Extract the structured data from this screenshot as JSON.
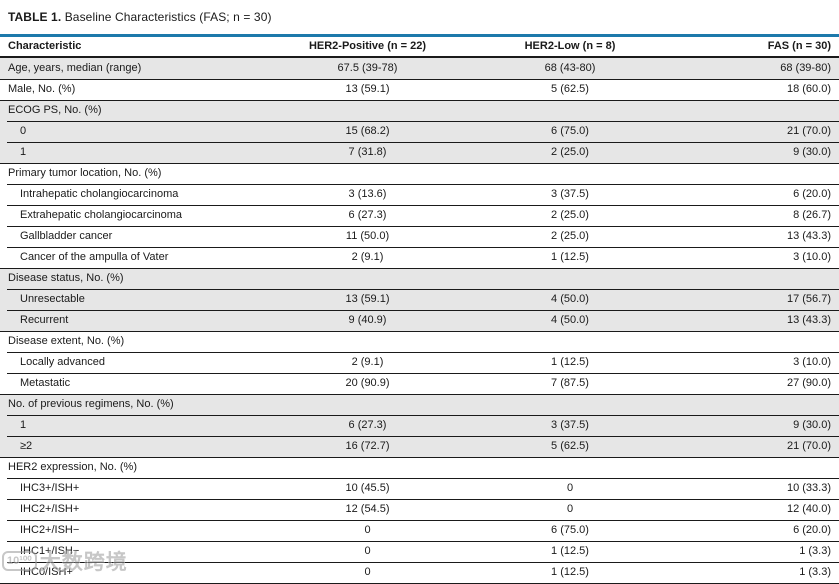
{
  "caption": {
    "label": "TABLE 1.",
    "title": "Baseline Characteristics (FAS; n = 30)"
  },
  "columns": [
    "Characteristic",
    "HER2-Positive (n = 22)",
    "HER2-Low (n = 8)",
    "FAS (n = 30)"
  ],
  "rows": [
    {
      "label": "Age, years, median (range)",
      "indent": 0,
      "shaded": true,
      "section_start": true,
      "values": [
        "67.5 (39-78)",
        "68 (43-80)",
        "68 (39-80)"
      ]
    },
    {
      "label": "Male, No. (%)",
      "indent": 0,
      "shaded": false,
      "section_start": true,
      "values": [
        "13 (59.1)",
        "5 (62.5)",
        "18 (60.0)"
      ]
    },
    {
      "label": "ECOG PS, No. (%)",
      "indent": 0,
      "shaded": true,
      "section_start": true,
      "values": [
        "",
        "",
        ""
      ]
    },
    {
      "label": "0",
      "indent": 1,
      "shaded": true,
      "section_start": false,
      "values": [
        "15 (68.2)",
        "6 (75.0)",
        "21 (70.0)"
      ]
    },
    {
      "label": "1",
      "indent": 1,
      "shaded": true,
      "section_start": false,
      "values": [
        "7 (31.8)",
        "2 (25.0)",
        "9 (30.0)"
      ]
    },
    {
      "label": "Primary tumor location, No. (%)",
      "indent": 0,
      "shaded": false,
      "section_start": true,
      "values": [
        "",
        "",
        ""
      ]
    },
    {
      "label": "Intrahepatic cholangiocarcinoma",
      "indent": 1,
      "shaded": false,
      "section_start": false,
      "values": [
        "3 (13.6)",
        "3 (37.5)",
        "6 (20.0)"
      ]
    },
    {
      "label": "Extrahepatic cholangiocarcinoma",
      "indent": 1,
      "shaded": false,
      "section_start": false,
      "values": [
        "6 (27.3)",
        "2 (25.0)",
        "8 (26.7)"
      ]
    },
    {
      "label": "Gallbladder cancer",
      "indent": 1,
      "shaded": false,
      "section_start": false,
      "values": [
        "11 (50.0)",
        "2 (25.0)",
        "13 (43.3)"
      ]
    },
    {
      "label": "Cancer of the ampulla of Vater",
      "indent": 1,
      "shaded": false,
      "section_start": false,
      "values": [
        "2 (9.1)",
        "1 (12.5)",
        "3 (10.0)"
      ]
    },
    {
      "label": "Disease status, No. (%)",
      "indent": 0,
      "shaded": true,
      "section_start": true,
      "values": [
        "",
        "",
        ""
      ]
    },
    {
      "label": "Unresectable",
      "indent": 1,
      "shaded": true,
      "section_start": false,
      "values": [
        "13 (59.1)",
        "4 (50.0)",
        "17 (56.7)"
      ]
    },
    {
      "label": "Recurrent",
      "indent": 1,
      "shaded": true,
      "section_start": false,
      "values": [
        "9 (40.9)",
        "4 (50.0)",
        "13 (43.3)"
      ]
    },
    {
      "label": "Disease extent, No. (%)",
      "indent": 0,
      "shaded": false,
      "section_start": true,
      "values": [
        "",
        "",
        ""
      ]
    },
    {
      "label": "Locally advanced",
      "indent": 1,
      "shaded": false,
      "section_start": false,
      "values": [
        "2 (9.1)",
        "1 (12.5)",
        "3 (10.0)"
      ]
    },
    {
      "label": "Metastatic",
      "indent": 1,
      "shaded": false,
      "section_start": false,
      "values": [
        "20 (90.9)",
        "7 (87.5)",
        "27 (90.0)"
      ]
    },
    {
      "label": "No. of previous regimens, No. (%)",
      "indent": 0,
      "shaded": true,
      "section_start": true,
      "values": [
        "",
        "",
        ""
      ]
    },
    {
      "label": "1",
      "indent": 1,
      "shaded": true,
      "section_start": false,
      "values": [
        "6 (27.3)",
        "3 (37.5)",
        "9 (30.0)"
      ]
    },
    {
      "label": "≥2",
      "indent": 1,
      "shaded": true,
      "section_start": false,
      "values": [
        "16 (72.7)",
        "5 (62.5)",
        "21 (70.0)"
      ]
    },
    {
      "label": "HER2 expression, No. (%)",
      "indent": 0,
      "shaded": false,
      "section_start": true,
      "values": [
        "",
        "",
        ""
      ]
    },
    {
      "label": "IHC3+/ISH+",
      "indent": 1,
      "shaded": false,
      "section_start": false,
      "values": [
        "10 (45.5)",
        "0",
        "10 (33.3)"
      ]
    },
    {
      "label": "IHC2+/ISH+",
      "indent": 1,
      "shaded": false,
      "section_start": false,
      "values": [
        "12 (54.5)",
        "0",
        "12 (40.0)"
      ]
    },
    {
      "label": "IHC2+/ISH−",
      "indent": 1,
      "shaded": false,
      "section_start": false,
      "values": [
        "0",
        "6 (75.0)",
        "6 (20.0)"
      ]
    },
    {
      "label": "IHC1+/ISH−",
      "indent": 1,
      "shaded": false,
      "section_start": false,
      "values": [
        "0",
        "1 (12.5)",
        "1 (3.3)"
      ]
    },
    {
      "label": "IHC0/ISH+",
      "indent": 1,
      "shaded": false,
      "section_start": false,
      "values": [
        "0",
        "1 (12.5)",
        "1 (3.3)"
      ]
    }
  ],
  "watermark": {
    "logo": "10¹⁰⁰",
    "text": "大数跨境"
  },
  "colors": {
    "accent": "#1d79ab",
    "shade": "#e6e6e6",
    "line": "#1a1a1a"
  }
}
